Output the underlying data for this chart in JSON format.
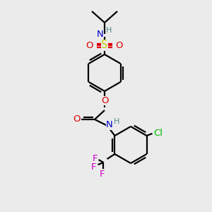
{
  "bg_color": "#EBEBEB",
  "bond_color": "#000000",
  "line_width": 1.6,
  "colors": {
    "N": "#0000CC",
    "H": "#558888",
    "O": "#DD0000",
    "S": "#CCCC00",
    "F": "#CC00CC",
    "Cl": "#00BB00",
    "C": "#000000"
  },
  "font_size": 9.5
}
